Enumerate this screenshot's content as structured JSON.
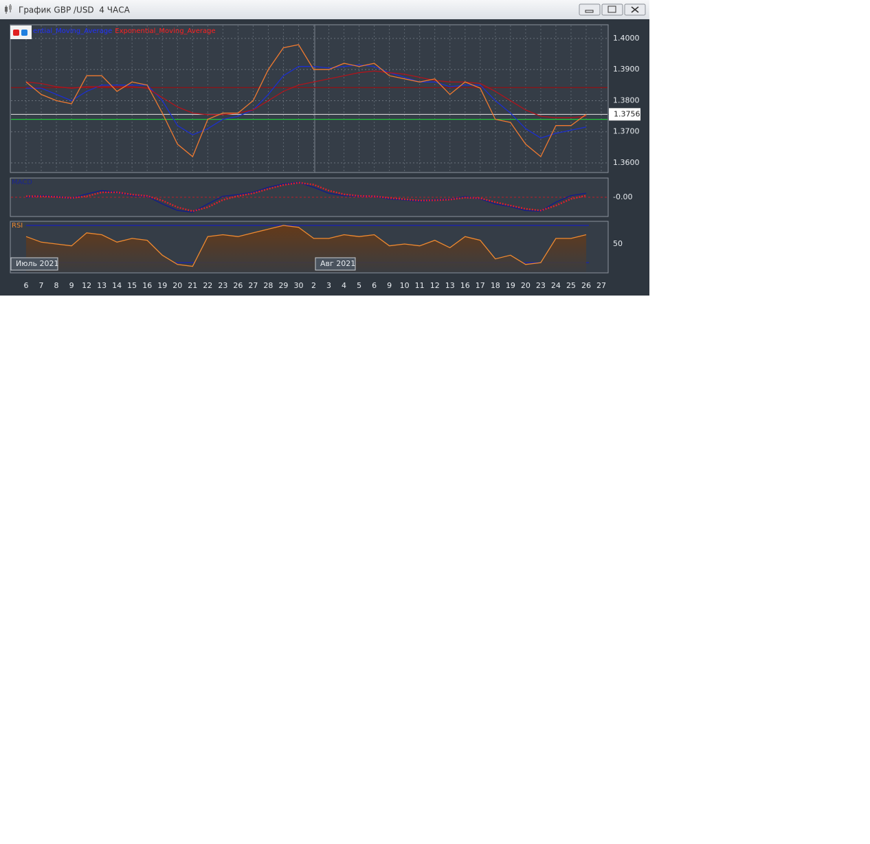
{
  "window": {
    "title": "График GBP /USD  4 ЧАСА",
    "months": [
      "Июль 2021",
      "Авг 2021"
    ]
  },
  "chart_data": [
    {
      "type": "line",
      "categories": [
        "6",
        "7",
        "8",
        "9",
        "12",
        "13",
        "14",
        "15",
        "16",
        "19",
        "20",
        "21",
        "22",
        "23",
        "26",
        "27",
        "28",
        "29",
        "30",
        "2",
        "3",
        "4",
        "5",
        "6",
        "9",
        "10",
        "11",
        "12",
        "13",
        "16",
        "17",
        "18",
        "19",
        "20",
        "23",
        "24",
        "25",
        "26",
        "27"
      ],
      "series": [
        {
          "name": "ential_Moving_Average",
          "color": "#1c2fd0",
          "legend_color": "#2030ff",
          "values": [
            1.384,
            1.384,
            1.382,
            1.38,
            1.383,
            1.385,
            1.385,
            1.385,
            1.385,
            1.38,
            1.372,
            1.369,
            1.371,
            1.374,
            1.375,
            1.377,
            1.382,
            1.388,
            1.391,
            1.391,
            1.3905,
            1.391,
            1.3915,
            1.391,
            1.389,
            1.3875,
            1.386,
            1.386,
            1.3845,
            1.385,
            1.385,
            1.38,
            1.376,
            1.371,
            1.368,
            1.3695,
            1.3705,
            1.3715,
            null
          ]
        },
        {
          "name": "Exponential_Moving_Average",
          "color": "#b0141c",
          "legend_color": "#ff2020",
          "values": [
            1.386,
            1.3855,
            1.3845,
            1.384,
            1.3845,
            1.3845,
            1.3845,
            1.3845,
            1.384,
            1.381,
            1.378,
            1.376,
            1.3755,
            1.3755,
            1.376,
            1.377,
            1.38,
            1.383,
            1.385,
            1.386,
            1.387,
            1.388,
            1.389,
            1.3895,
            1.389,
            1.3885,
            1.3875,
            1.3865,
            1.386,
            1.386,
            1.3855,
            1.383,
            1.38,
            1.377,
            1.375,
            1.3745,
            1.3745,
            1.375,
            null
          ]
        },
        {
          "name": "GBP /USD",
          "color": "#f07a30",
          "values": [
            1.386,
            1.382,
            1.38,
            1.379,
            1.388,
            1.388,
            1.383,
            1.386,
            1.385,
            1.376,
            1.366,
            1.362,
            1.374,
            1.376,
            1.376,
            1.38,
            1.39,
            1.397,
            1.398,
            1.39,
            1.39,
            1.392,
            1.391,
            1.392,
            1.388,
            1.387,
            1.386,
            1.387,
            1.382,
            1.386,
            1.384,
            1.374,
            1.373,
            1.366,
            1.362,
            1.372,
            1.372,
            1.3756,
            null
          ]
        }
      ],
      "hlines": [
        1.3842,
        1.374
      ],
      "hline_colors": [
        "#8a1418",
        "#22c83a"
      ],
      "last_price": 1.3756,
      "ylim": [
        1.3569,
        1.4044
      ],
      "yticks": [
        {
          "value": 1.4,
          "label": "1.4000"
        },
        {
          "value": 1.39,
          "label": "1.3900"
        },
        {
          "value": 1.38,
          "label": "1.3800"
        },
        {
          "value": 1.37,
          "label": "1.3700"
        },
        {
          "value": 1.36,
          "label": "1.3600"
        }
      ],
      "grid": true
    },
    {
      "type": "line",
      "title": "MACD",
      "series": [
        {
          "name": "MACD",
          "color": "#101a90",
          "values": [
            0,
            0.0005,
            0.0002,
            -0.0003,
            0.001,
            0.002,
            0.0015,
            0.0005,
            0.0003,
            -0.002,
            -0.004,
            -0.0045,
            -0.002,
            0.0003,
            0.0008,
            0.0015,
            0.003,
            0.004,
            0.0045,
            0.003,
            0.0012,
            0.0005,
            0.0003,
            0.0003,
            -0.0005,
            -0.0008,
            -0.0012,
            -0.0008,
            -0.0006,
            0.0002,
            -0.0005,
            -0.002,
            -0.0028,
            -0.004,
            -0.0042,
            -0.0015,
            0.0005,
            0.0012,
            null
          ]
        },
        {
          "color": "#e0202a",
          "dashed": true,
          "values": [
            0.0003,
            0.0003,
            0.0001,
            -0.0002,
            0.0003,
            0.0015,
            0.0015,
            0.0008,
            0.0004,
            -0.001,
            -0.003,
            -0.0042,
            -0.003,
            -0.0008,
            0.0004,
            0.0012,
            0.0025,
            0.0037,
            0.0044,
            0.0038,
            0.002,
            0.0009,
            0.0004,
            0.0003,
            -0.0002,
            -0.0006,
            -0.001,
            -0.0009,
            -0.0007,
            -0.0001,
            -0.0003,
            -0.0015,
            -0.0025,
            -0.0035,
            -0.004,
            -0.0025,
            -0.0005,
            0.0005,
            null
          ]
        }
      ],
      "ylim": [
        -0.0058,
        0.0058
      ],
      "yticks": [
        {
          "value": 0,
          "label": "-0.00"
        }
      ]
    },
    {
      "type": "area",
      "title": "RSI",
      "series": [
        {
          "color": "#f08a30",
          "values": [
            58,
            52,
            50,
            48,
            62,
            60,
            52,
            56,
            54,
            38,
            28,
            26,
            58,
            60,
            58,
            62,
            66,
            70,
            68,
            56,
            56,
            60,
            58,
            60,
            48,
            50,
            48,
            54,
            46,
            58,
            54,
            34,
            38,
            28,
            30,
            56,
            56,
            60,
            null
          ]
        }
      ],
      "levels": [
        70,
        30
      ],
      "level_color": "#1a22b0",
      "ylim": [
        19,
        74.4
      ],
      "yticks": [
        50
      ]
    }
  ]
}
